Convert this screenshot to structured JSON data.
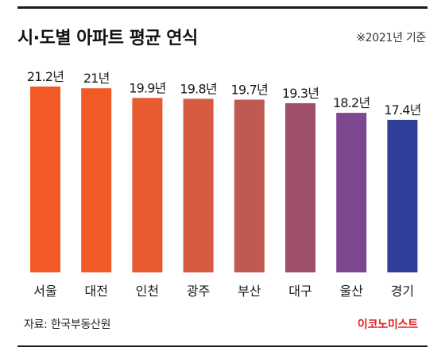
{
  "title": "시·도별 아파트 평균 연식",
  "note": "※2021년 기준",
  "source": "자료: 한국부동산원",
  "logo": "이코노미스트",
  "colors": {
    "bars": [
      "#f15a24",
      "#f05a25",
      "#e85a30",
      "#d55a40",
      "#bf5a52",
      "#a0506a",
      "#7d4890",
      "#2f3f9a"
    ]
  },
  "chart_data": {
    "type": "bar",
    "title": "시·도별 아파트 평균 연식",
    "categories": [
      "서울",
      "대전",
      "인천",
      "광주",
      "부산",
      "대구",
      "울산",
      "경기"
    ],
    "values": [
      21.2,
      21,
      19.9,
      19.8,
      19.7,
      19.3,
      18.2,
      17.4
    ],
    "value_labels": [
      "21.2년",
      "21년",
      "19.9년",
      "19.8년",
      "19.7년",
      "19.3년",
      "18.2년",
      "17.4년"
    ],
    "unit": "년",
    "xlabel": "",
    "ylabel": "",
    "grid": false,
    "legend": "none"
  }
}
